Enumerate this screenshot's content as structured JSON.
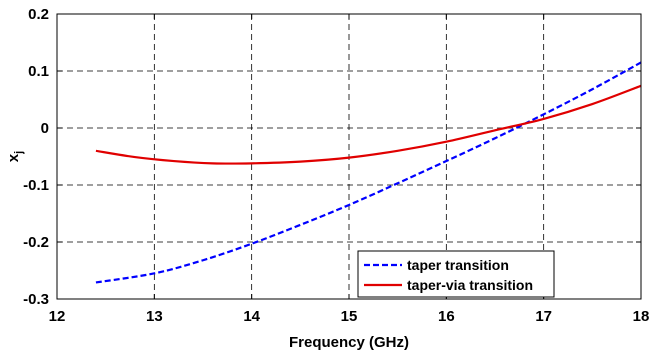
{
  "chart_data": {
    "type": "line",
    "xlabel": "Frequency (GHz)",
    "ylabel_main": "x",
    "ylabel_sub": "j",
    "xlim": [
      12,
      18
    ],
    "ylim": [
      -0.3,
      0.2
    ],
    "xticks": [
      12,
      13,
      14,
      15,
      16,
      17,
      18
    ],
    "yticks": [
      -0.3,
      -0.2,
      -0.1,
      0,
      0.1,
      0.2
    ],
    "xtick_labels": [
      "12",
      "13",
      "14",
      "15",
      "16",
      "17",
      "18"
    ],
    "ytick_labels": [
      "-0.3",
      "-0.2",
      "-0.1",
      "0",
      "0.1",
      "0.2"
    ],
    "grid": true,
    "legend_position": "bottom-right",
    "series": [
      {
        "name": "taper transition",
        "color": "#0000ff",
        "style": "dashed",
        "x": [
          12.4,
          13.0,
          13.5,
          14.0,
          14.5,
          15.0,
          15.5,
          16.0,
          16.5,
          17.0,
          17.5,
          18.0
        ],
        "y": [
          -0.271,
          -0.255,
          -0.232,
          -0.203,
          -0.17,
          -0.135,
          -0.097,
          -0.058,
          -0.018,
          0.024,
          0.068,
          0.115
        ]
      },
      {
        "name": "taper-via transition",
        "color": "#e00000",
        "style": "solid",
        "x": [
          12.4,
          12.8,
          13.2,
          13.6,
          14.0,
          14.5,
          15.0,
          15.5,
          16.0,
          16.5,
          17.0,
          17.5,
          18.0
        ],
        "y": [
          -0.04,
          -0.051,
          -0.058,
          -0.062,
          -0.062,
          -0.059,
          -0.052,
          -0.04,
          -0.024,
          -0.004,
          0.016,
          0.042,
          0.074
        ]
      }
    ]
  }
}
